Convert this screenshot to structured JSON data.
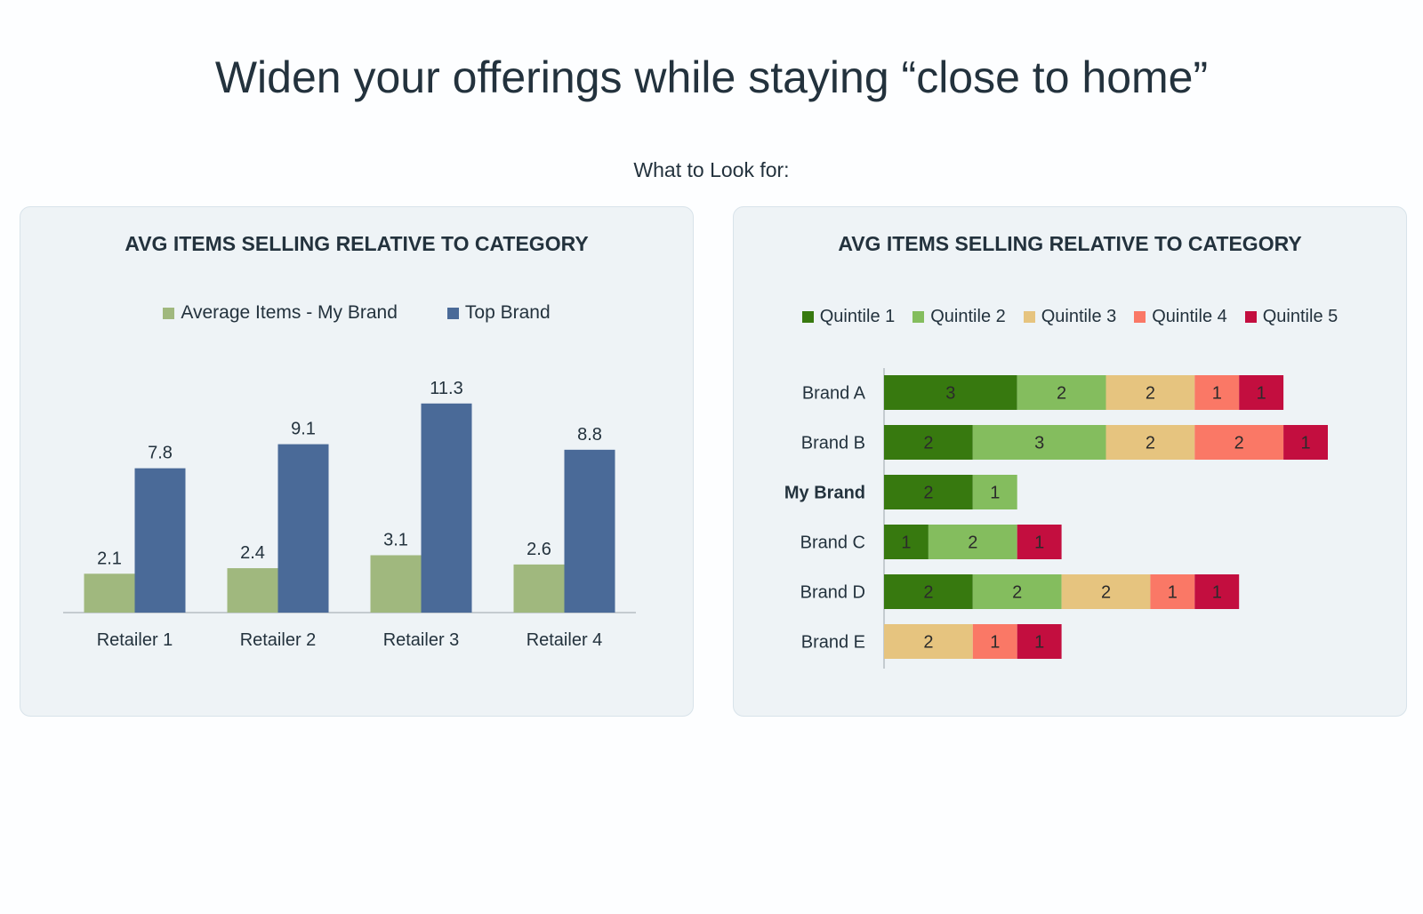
{
  "page": {
    "title": "Widen your offerings while staying “close to home”",
    "subtitle": "What to Look for:"
  },
  "chart_data": [
    {
      "type": "bar",
      "title": "AVG ITEMS SELLING RELATIVE TO CATEGORY",
      "categories": [
        "Retailer 1",
        "Retailer 2",
        "Retailer 3",
        "Retailer 4"
      ],
      "series": [
        {
          "name": "Average Items - My Brand",
          "values": [
            2.1,
            2.4,
            3.1,
            2.6
          ],
          "color": "#a0b87e"
        },
        {
          "name": "Top Brand",
          "values": [
            7.8,
            9.1,
            11.3,
            8.8
          ],
          "color": "#4a6a98"
        }
      ],
      "ylim": [
        0,
        12.3
      ],
      "legend": "top",
      "grid": false
    },
    {
      "type": "bar",
      "orientation": "horizontal",
      "stacked": true,
      "title": "AVG ITEMS SELLING RELATIVE TO CATEGORY",
      "categories": [
        "Brand A",
        "Brand B",
        "My Brand",
        "Brand C",
        "Brand D",
        "Brand E"
      ],
      "highlight_category": "My Brand",
      "series": [
        {
          "name": "Quintile 1",
          "values": [
            3,
            2,
            2,
            1,
            2,
            0
          ],
          "color": "#37790f"
        },
        {
          "name": "Quintile 2",
          "values": [
            2,
            3,
            1,
            2,
            2,
            0
          ],
          "color": "#84bd5e"
        },
        {
          "name": "Quintile 3",
          "values": [
            2,
            2,
            0,
            0,
            2,
            2
          ],
          "color": "#e6c47f"
        },
        {
          "name": "Quintile 4",
          "values": [
            1,
            2,
            0,
            0,
            1,
            1
          ],
          "color": "#fa7866"
        },
        {
          "name": "Quintile 5",
          "values": [
            1,
            1,
            0,
            1,
            1,
            1
          ],
          "color": "#c30e3f"
        }
      ],
      "xlim": [
        0,
        10
      ],
      "legend": "top",
      "grid": false
    }
  ]
}
